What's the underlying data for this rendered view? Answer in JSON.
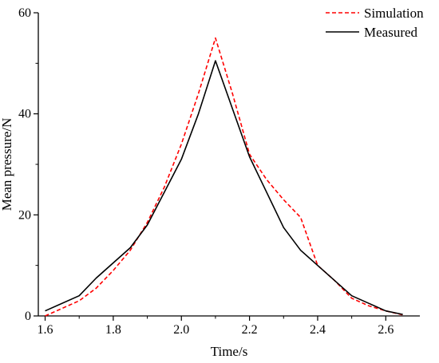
{
  "chart_data": {
    "type": "line",
    "title": "",
    "xlabel": "Time/s",
    "ylabel": "Mean pressure/N",
    "xlim": [
      1.58,
      2.7
    ],
    "ylim": [
      0,
      60
    ],
    "x_ticks": [
      1.6,
      1.8,
      2.0,
      2.2,
      2.4,
      2.6
    ],
    "x_tick_labels": [
      "1.6",
      "1.8",
      "2.0",
      "2.2",
      "2.4",
      "2.6"
    ],
    "y_ticks": [
      0,
      20,
      40,
      60
    ],
    "y_tick_labels": [
      "0",
      "20",
      "40",
      "60"
    ],
    "grid": false,
    "legend_position": "top-right",
    "series": [
      {
        "name": "Simulation",
        "color": "#ff0000",
        "style": "dashed",
        "points": [
          [
            1.6,
            0.0
          ],
          [
            1.7,
            3.0
          ],
          [
            1.75,
            5.5
          ],
          [
            1.8,
            9.0
          ],
          [
            1.85,
            13.0
          ],
          [
            1.9,
            18.5
          ],
          [
            1.95,
            25.5
          ],
          [
            2.0,
            34.0
          ],
          [
            2.05,
            44.0
          ],
          [
            2.1,
            55.0
          ],
          [
            2.15,
            44.0
          ],
          [
            2.2,
            32.0
          ],
          [
            2.25,
            27.0
          ],
          [
            2.3,
            23.0
          ],
          [
            2.35,
            19.5
          ],
          [
            2.4,
            10.0
          ],
          [
            2.45,
            7.0
          ],
          [
            2.5,
            3.5
          ],
          [
            2.55,
            2.0
          ],
          [
            2.6,
            1.0
          ],
          [
            2.65,
            0.2
          ]
        ]
      },
      {
        "name": "Measured",
        "color": "#000000",
        "style": "solid",
        "points": [
          [
            1.6,
            1.0
          ],
          [
            1.7,
            4.0
          ],
          [
            1.75,
            7.5
          ],
          [
            1.8,
            10.5
          ],
          [
            1.85,
            13.5
          ],
          [
            1.9,
            18.0
          ],
          [
            1.95,
            24.5
          ],
          [
            2.0,
            31.0
          ],
          [
            2.05,
            40.0
          ],
          [
            2.1,
            50.5
          ],
          [
            2.15,
            41.0
          ],
          [
            2.2,
            31.5
          ],
          [
            2.25,
            24.5
          ],
          [
            2.3,
            17.5
          ],
          [
            2.35,
            13.0
          ],
          [
            2.4,
            10.0
          ],
          [
            2.45,
            7.0
          ],
          [
            2.5,
            4.0
          ],
          [
            2.55,
            2.5
          ],
          [
            2.6,
            1.0
          ],
          [
            2.65,
            0.3
          ]
        ]
      }
    ]
  }
}
